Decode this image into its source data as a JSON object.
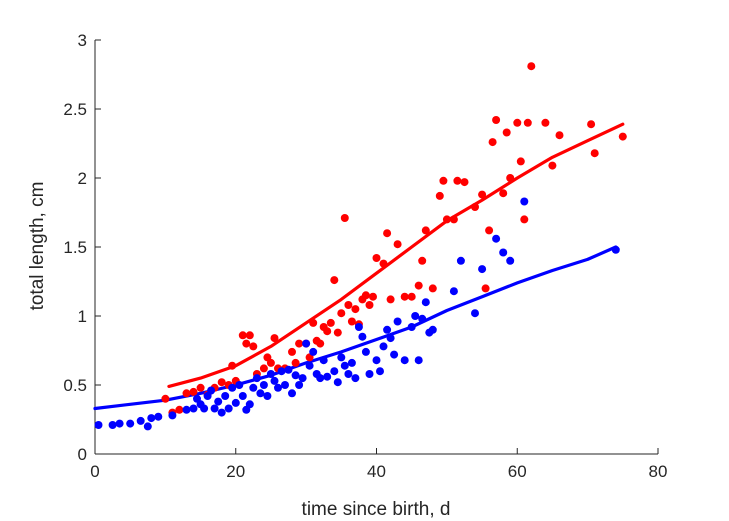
{
  "chart_data": {
    "type": "scatter",
    "title": "",
    "xlabel": "time since birth, d",
    "ylabel": "total length, cm",
    "xlim": [
      0,
      80
    ],
    "ylim": [
      0,
      3
    ],
    "xticks": [
      0,
      20,
      40,
      60,
      80
    ],
    "xtick_labels": [
      "0",
      "20",
      "40",
      "60",
      "80"
    ],
    "yticks": [
      0,
      0.5,
      1,
      1.5,
      2,
      2.5,
      3
    ],
    "ytick_labels": [
      "0",
      "0.5",
      "1",
      "1.5",
      "2",
      "2.5",
      "3"
    ],
    "grid": false,
    "legend": "none",
    "colors": {
      "red": "#ff0000",
      "blue": "#0000ff",
      "axis": "#262626"
    },
    "series": [
      {
        "color": "#ff0000",
        "kind": "scatter",
        "points": [
          [
            10,
            0.4
          ],
          [
            11,
            0.3
          ],
          [
            12,
            0.32
          ],
          [
            13,
            0.44
          ],
          [
            14,
            0.45
          ],
          [
            15,
            0.48
          ],
          [
            16,
            0.43
          ],
          [
            17,
            0.48
          ],
          [
            18,
            0.52
          ],
          [
            19,
            0.5
          ],
          [
            19.5,
            0.64
          ],
          [
            20,
            0.53
          ],
          [
            21,
            0.86
          ],
          [
            21.5,
            0.8
          ],
          [
            22,
            0.86
          ],
          [
            22.5,
            0.78
          ],
          [
            23,
            0.58
          ],
          [
            24,
            0.62
          ],
          [
            24.5,
            0.7
          ],
          [
            25,
            0.66
          ],
          [
            25.5,
            0.84
          ],
          [
            26,
            0.62
          ],
          [
            27,
            0.62
          ],
          [
            28,
            0.74
          ],
          [
            28.5,
            0.66
          ],
          [
            29,
            0.8
          ],
          [
            30,
            0.8
          ],
          [
            30.5,
            0.7
          ],
          [
            31,
            0.95
          ],
          [
            31.5,
            0.82
          ],
          [
            32,
            0.8
          ],
          [
            32.5,
            0.92
          ],
          [
            33,
            0.89
          ],
          [
            33.5,
            0.95
          ],
          [
            34,
            1.26
          ],
          [
            34.5,
            0.88
          ],
          [
            35,
            1.02
          ],
          [
            35.5,
            1.71
          ],
          [
            36,
            1.08
          ],
          [
            36.5,
            0.96
          ],
          [
            37,
            1.05
          ],
          [
            37.5,
            0.94
          ],
          [
            38,
            1.12
          ],
          [
            38.5,
            1.15
          ],
          [
            39,
            1.08
          ],
          [
            39.5,
            1.14
          ],
          [
            40,
            1.42
          ],
          [
            41,
            1.38
          ],
          [
            41.5,
            1.6
          ],
          [
            42,
            1.12
          ],
          [
            43,
            1.52
          ],
          [
            44,
            1.14
          ],
          [
            45,
            1.14
          ],
          [
            46,
            1.22
          ],
          [
            46.5,
            1.4
          ],
          [
            47,
            1.62
          ],
          [
            48,
            1.2
          ],
          [
            49,
            1.87
          ],
          [
            49.5,
            1.98
          ],
          [
            50,
            1.7
          ],
          [
            51,
            1.7
          ],
          [
            51.5,
            1.98
          ],
          [
            52.5,
            1.97
          ],
          [
            54,
            1.79
          ],
          [
            55,
            1.88
          ],
          [
            55.5,
            1.2
          ],
          [
            56,
            1.62
          ],
          [
            56.5,
            2.26
          ],
          [
            57,
            2.42
          ],
          [
            58,
            1.89
          ],
          [
            58.5,
            2.33
          ],
          [
            59,
            2.0
          ],
          [
            60,
            2.4
          ],
          [
            60.5,
            2.12
          ],
          [
            61,
            1.7
          ],
          [
            61.5,
            2.4
          ],
          [
            62,
            2.81
          ],
          [
            64,
            2.4
          ],
          [
            65,
            2.09
          ],
          [
            66,
            2.31
          ],
          [
            70.5,
            2.39
          ],
          [
            71,
            2.18
          ],
          [
            75,
            2.3
          ]
        ]
      },
      {
        "color": "#0000ff",
        "kind": "scatter",
        "points": [
          [
            0.5,
            0.21
          ],
          [
            2.5,
            0.21
          ],
          [
            3.5,
            0.22
          ],
          [
            5,
            0.22
          ],
          [
            6.5,
            0.24
          ],
          [
            7.5,
            0.2
          ],
          [
            8,
            0.26
          ],
          [
            9,
            0.27
          ],
          [
            11,
            0.28
          ],
          [
            13,
            0.32
          ],
          [
            14,
            0.33
          ],
          [
            14.5,
            0.4
          ],
          [
            15,
            0.36
          ],
          [
            15.5,
            0.33
          ],
          [
            16,
            0.42
          ],
          [
            16.5,
            0.46
          ],
          [
            17,
            0.33
          ],
          [
            17.5,
            0.38
          ],
          [
            18,
            0.3
          ],
          [
            18.5,
            0.42
          ],
          [
            19,
            0.33
          ],
          [
            19.5,
            0.48
          ],
          [
            20,
            0.37
          ],
          [
            20.5,
            0.5
          ],
          [
            21,
            0.42
          ],
          [
            21.5,
            0.32
          ],
          [
            22,
            0.36
          ],
          [
            22.5,
            0.48
          ],
          [
            23,
            0.55
          ],
          [
            23.5,
            0.44
          ],
          [
            24,
            0.5
          ],
          [
            24.5,
            0.42
          ],
          [
            25,
            0.58
          ],
          [
            25.5,
            0.53
          ],
          [
            26,
            0.48
          ],
          [
            26.5,
            0.6
          ],
          [
            27,
            0.5
          ],
          [
            27.5,
            0.61
          ],
          [
            28,
            0.44
          ],
          [
            28.5,
            0.57
          ],
          [
            29,
            0.5
          ],
          [
            29.5,
            0.55
          ],
          [
            30,
            0.8
          ],
          [
            30.5,
            0.64
          ],
          [
            31,
            0.74
          ],
          [
            31.5,
            0.58
          ],
          [
            32,
            0.55
          ],
          [
            32.5,
            0.68
          ],
          [
            33,
            0.56
          ],
          [
            34,
            0.6
          ],
          [
            34.5,
            0.52
          ],
          [
            35,
            0.7
          ],
          [
            35.5,
            0.64
          ],
          [
            36,
            0.58
          ],
          [
            36.5,
            0.66
          ],
          [
            37,
            0.55
          ],
          [
            37.5,
            0.92
          ],
          [
            38,
            0.85
          ],
          [
            38.5,
            0.74
          ],
          [
            39,
            0.58
          ],
          [
            40,
            0.68
          ],
          [
            40.5,
            0.6
          ],
          [
            41,
            0.78
          ],
          [
            41.5,
            0.9
          ],
          [
            42,
            0.84
          ],
          [
            42.5,
            0.72
          ],
          [
            43,
            0.96
          ],
          [
            44,
            0.68
          ],
          [
            45,
            0.92
          ],
          [
            45.5,
            1.0
          ],
          [
            46,
            0.68
          ],
          [
            46.5,
            0.98
          ],
          [
            47,
            1.1
          ],
          [
            47.5,
            0.88
          ],
          [
            48,
            0.9
          ],
          [
            51,
            1.18
          ],
          [
            52,
            1.4
          ],
          [
            54,
            1.02
          ],
          [
            55,
            1.34
          ],
          [
            57,
            1.56
          ],
          [
            58,
            1.46
          ],
          [
            59,
            1.4
          ],
          [
            61,
            1.83
          ],
          [
            74,
            1.48
          ]
        ]
      },
      {
        "color": "#ff0000",
        "kind": "fit-line",
        "points": [
          [
            10.5,
            0.49
          ],
          [
            15,
            0.55
          ],
          [
            20,
            0.64
          ],
          [
            25,
            0.78
          ],
          [
            30,
            0.95
          ],
          [
            35,
            1.12
          ],
          [
            40,
            1.31
          ],
          [
            45,
            1.5
          ],
          [
            50,
            1.69
          ],
          [
            55,
            1.84
          ],
          [
            60,
            2.0
          ],
          [
            65,
            2.15
          ],
          [
            70,
            2.27
          ],
          [
            75,
            2.39
          ]
        ]
      },
      {
        "color": "#0000ff",
        "kind": "fit-line",
        "points": [
          [
            0,
            0.33
          ],
          [
            5,
            0.36
          ],
          [
            10,
            0.39
          ],
          [
            15,
            0.44
          ],
          [
            20,
            0.5
          ],
          [
            25,
            0.57
          ],
          [
            30,
            0.66
          ],
          [
            35,
            0.74
          ],
          [
            40,
            0.83
          ],
          [
            45,
            0.92
          ],
          [
            50,
            1.04
          ],
          [
            55,
            1.14
          ],
          [
            60,
            1.24
          ],
          [
            65,
            1.33
          ],
          [
            70,
            1.41
          ],
          [
            74,
            1.5
          ]
        ]
      }
    ]
  }
}
